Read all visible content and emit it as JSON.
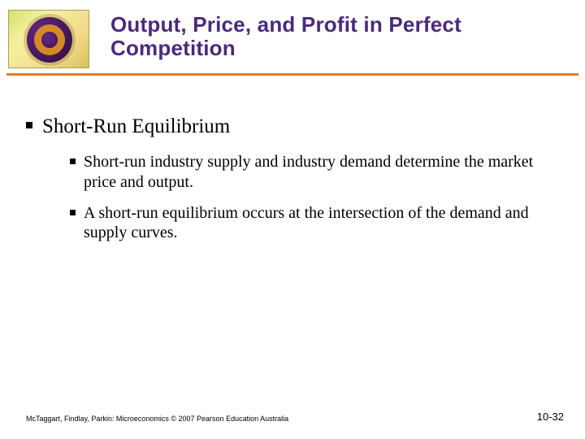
{
  "title": "Output, Price, and Profit in Perfect Competition",
  "colors": {
    "title_color": "#4a2a7a",
    "underline_color": "#e57a2a",
    "bullet_color": "#000000",
    "background": "#ffffff"
  },
  "typography": {
    "title_font": "Verdana",
    "title_size_pt": 20,
    "body_font": "Times New Roman",
    "lvl1_size_pt": 19,
    "lvl2_size_pt": 15,
    "footer_size_pt": 7
  },
  "bullets": {
    "lvl1": "Short-Run Equilibrium",
    "lvl2": [
      "Short-run industry supply and industry demand determine the market price and output.",
      "A short-run equilibrium occurs at the intersection of the demand and supply curves."
    ]
  },
  "footer": {
    "left": "McTaggart, Findlay, Parkin: Microeconomics © 2007 Pearson Education Australia",
    "right": "10-32"
  },
  "logo": {
    "frame_gradient": [
      "#d6e26a",
      "#f4f0a0",
      "#f2d98a",
      "#d6c25a"
    ],
    "inner_color": "#4a1b66",
    "ring_color": "#d48a2a"
  }
}
